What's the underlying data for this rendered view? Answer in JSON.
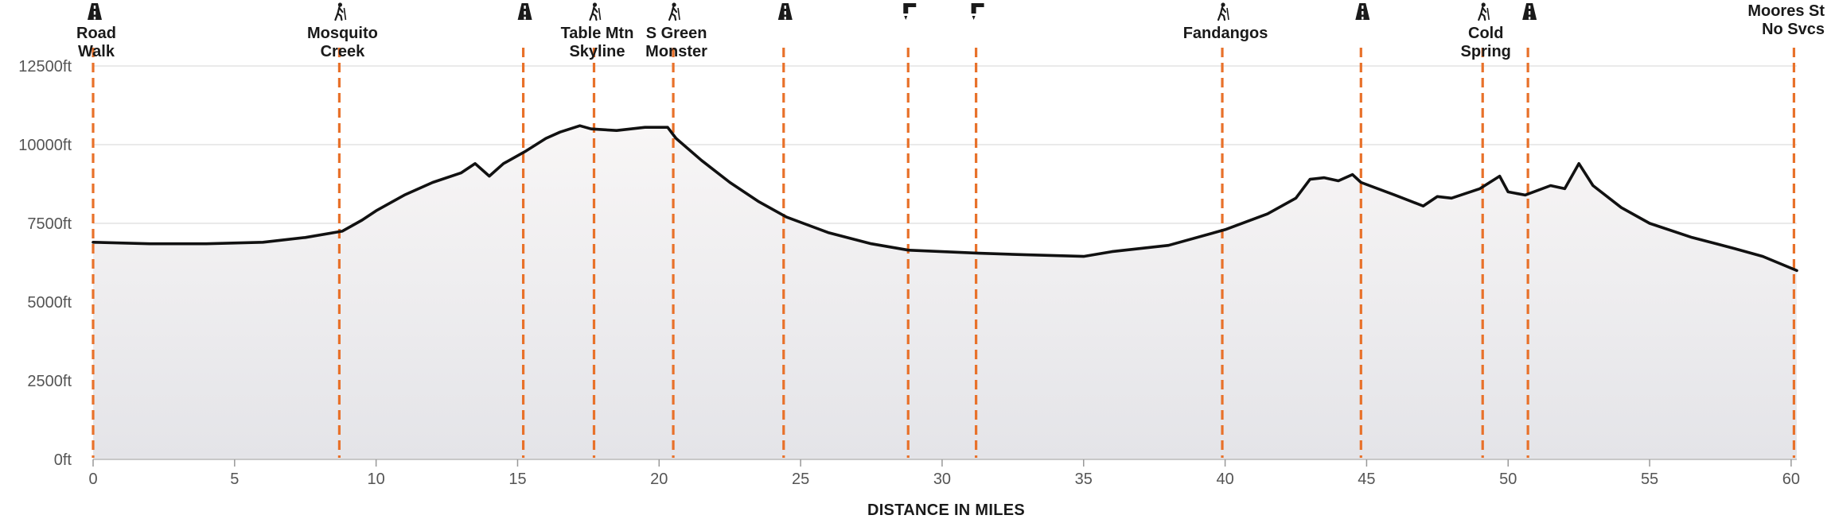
{
  "chart_data": {
    "type": "area",
    "xlabel": "DISTANCE IN MILES",
    "ylabel": "",
    "y_unit": "ft",
    "xlim": [
      0,
      60.2
    ],
    "ylim": [
      0,
      12500
    ],
    "x_ticks": [
      0,
      5,
      10,
      15,
      20,
      25,
      30,
      35,
      40,
      45,
      50,
      55,
      60
    ],
    "y_ticks": [
      0,
      2500,
      5000,
      7500,
      10000,
      12500
    ],
    "y_tick_labels": [
      "0ft",
      "2500ft",
      "5000ft",
      "7500ft",
      "10000ft",
      "12500ft"
    ],
    "grid": true,
    "profile": {
      "x": [
        0,
        2,
        4,
        6,
        7.5,
        8.8,
        9.5,
        10,
        11,
        12,
        13,
        13.5,
        14,
        14.5,
        15.3,
        16,
        16.5,
        17.2,
        17.6,
        18.5,
        19.5,
        20.3,
        20.6,
        21.5,
        22.5,
        23.5,
        24.5,
        26,
        27.5,
        28.8,
        30,
        31.3,
        33,
        35,
        36,
        38,
        40,
        41.5,
        42.5,
        43,
        43.5,
        44,
        44.5,
        44.8,
        46,
        47,
        47.5,
        48,
        49,
        49.7,
        50,
        50.6,
        51.5,
        52,
        52.5,
        53,
        54,
        55,
        56.5,
        58,
        59,
        60.2
      ],
      "y": [
        6900,
        6850,
        6850,
        6900,
        7050,
        7250,
        7600,
        7900,
        8400,
        8800,
        9100,
        9400,
        9000,
        9400,
        9800,
        10200,
        10400,
        10600,
        10500,
        10450,
        10550,
        10550,
        10200,
        9500,
        8800,
        8200,
        7700,
        7200,
        6850,
        6650,
        6600,
        6550,
        6500,
        6450,
        6600,
        6800,
        7300,
        7800,
        8300,
        8900,
        8950,
        8850,
        9050,
        8800,
        8400,
        8050,
        8350,
        8300,
        8600,
        9000,
        8500,
        8400,
        8700,
        8600,
        9400,
        8700,
        8000,
        7500,
        7050,
        6700,
        6450,
        6000
      ]
    },
    "waypoints": [
      {
        "mile": 0,
        "icon": "road-icon",
        "label_lines": [
          "Road",
          "Walk"
        ]
      },
      {
        "mile": 8.7,
        "icon": "hiker-icon",
        "label_lines": [
          "Mosquito",
          "Creek"
        ]
      },
      {
        "mile": 15.2,
        "icon": "road-icon",
        "label_lines": []
      },
      {
        "mile": 17.7,
        "icon": "hiker-icon",
        "label_lines": [
          "Table Mtn",
          "Skyline"
        ]
      },
      {
        "mile": 20.5,
        "icon": "hiker-icon",
        "label_lines": [
          "S Green",
          "Monster"
        ]
      },
      {
        "mile": 24.4,
        "icon": "road-icon",
        "label_lines": []
      },
      {
        "mile": 28.8,
        "icon": "water-faucet-icon",
        "label_lines": []
      },
      {
        "mile": 31.2,
        "icon": "water-faucet-icon",
        "label_lines": []
      },
      {
        "mile": 39.9,
        "icon": "hiker-icon",
        "label_lines": [
          "Fandangos"
        ]
      },
      {
        "mile": 44.8,
        "icon": "road-icon",
        "label_lines": []
      },
      {
        "mile": 49.1,
        "icon": "hiker-icon",
        "label_lines": [
          "Cold",
          "Spring"
        ]
      },
      {
        "mile": 50.7,
        "icon": "road-icon",
        "label_lines": []
      },
      {
        "mile": 60.1,
        "icon": "none",
        "label_lines": [
          "Moores St",
          "No Svcs"
        ]
      }
    ],
    "colors": {
      "marker": "#E8712A",
      "profile_line": "#111111",
      "fill_top": "#F8F6F6",
      "fill_bottom": "#E4E4E8",
      "grid": "#DDDDDD",
      "text": "#1a1a1a",
      "tick_text": "#555555"
    }
  }
}
